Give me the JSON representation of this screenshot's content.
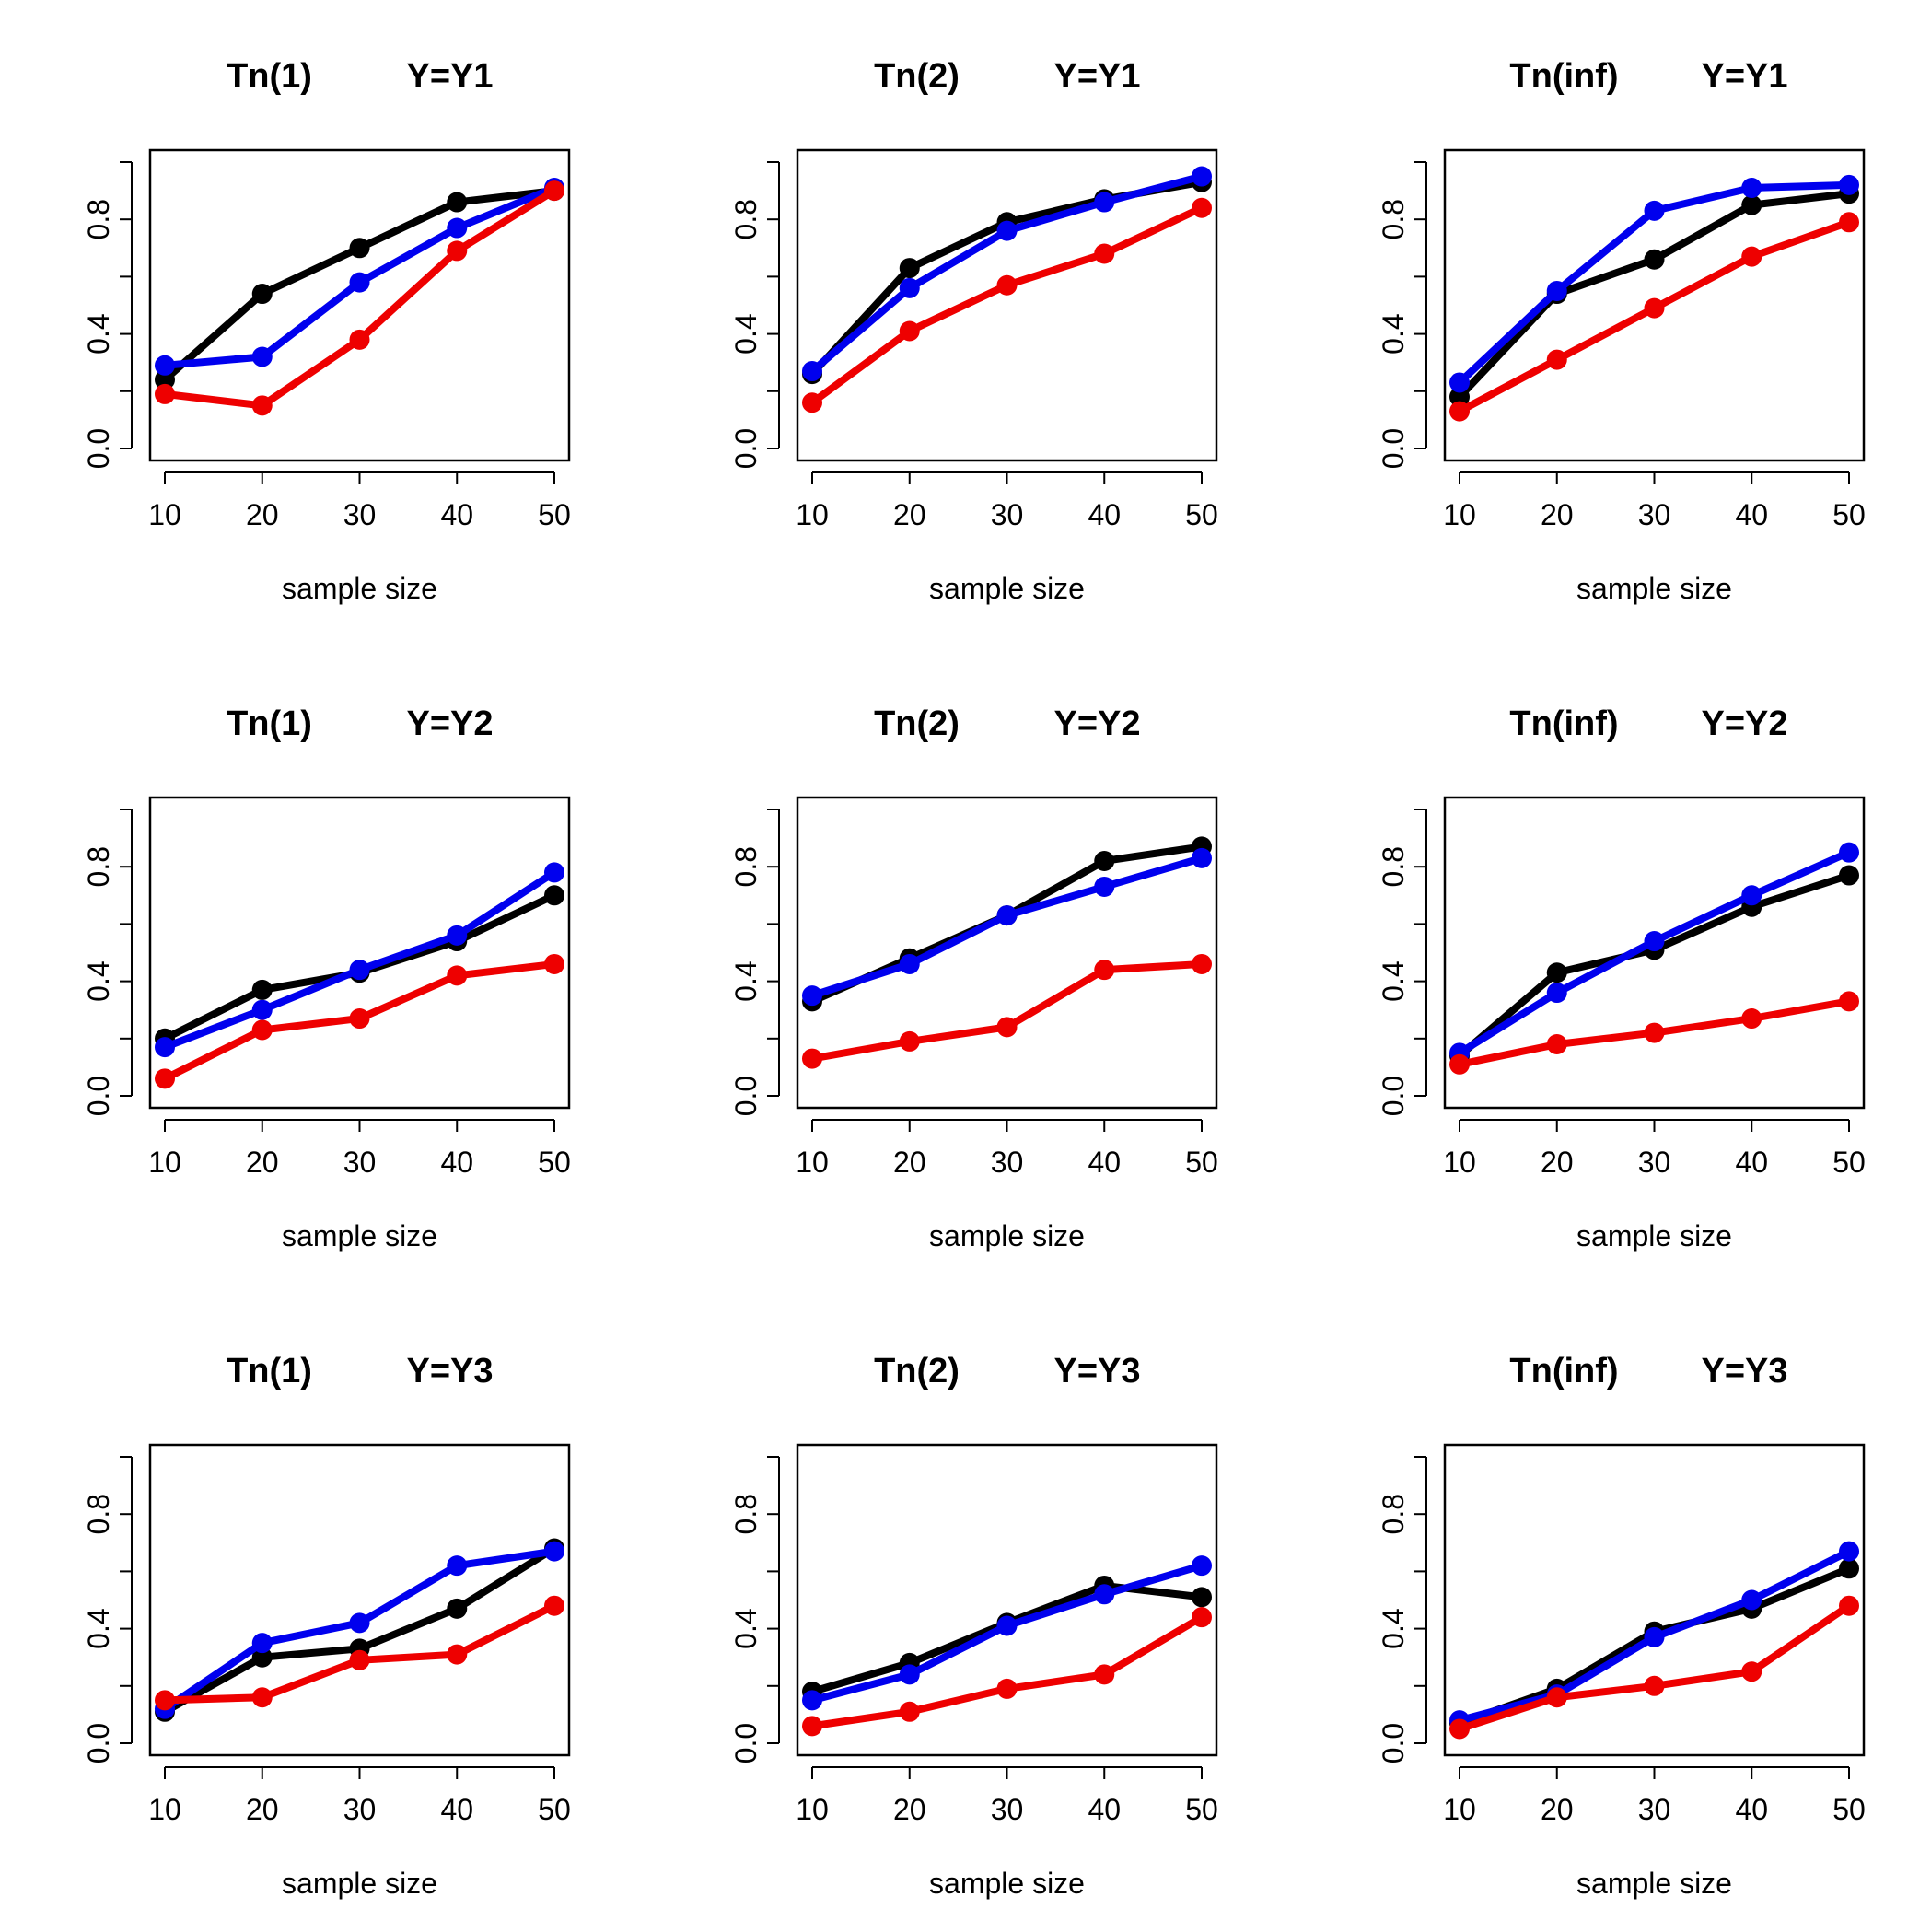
{
  "colors": {
    "series_black": "#000000",
    "series_blue": "#0000ee",
    "series_red": "#ee0000"
  },
  "chart_data": [
    {
      "type": "line",
      "title_stat": "Tn(1)",
      "title_y": "Y=Y1",
      "xlabel": "sample size",
      "ylabel": "",
      "x": [
        10,
        20,
        30,
        40,
        50
      ],
      "xticks": [
        "10",
        "20",
        "30",
        "40",
        "50"
      ],
      "yticks": [
        "0.0",
        "0.4",
        "0.8"
      ],
      "ylim": [
        0,
        1
      ],
      "series": [
        {
          "name": "black",
          "values": [
            0.24,
            0.54,
            0.7,
            0.86,
            0.9
          ]
        },
        {
          "name": "blue",
          "values": [
            0.29,
            0.32,
            0.58,
            0.77,
            0.91
          ]
        },
        {
          "name": "red",
          "values": [
            0.19,
            0.15,
            0.38,
            0.69,
            0.9
          ]
        }
      ]
    },
    {
      "type": "line",
      "title_stat": "Tn(2)",
      "title_y": "Y=Y1",
      "xlabel": "sample size",
      "ylabel": "",
      "x": [
        10,
        20,
        30,
        40,
        50
      ],
      "xticks": [
        "10",
        "20",
        "30",
        "40",
        "50"
      ],
      "yticks": [
        "0.0",
        "0.4",
        "0.8"
      ],
      "ylim": [
        0,
        1
      ],
      "series": [
        {
          "name": "black",
          "values": [
            0.26,
            0.63,
            0.79,
            0.87,
            0.93
          ]
        },
        {
          "name": "blue",
          "values": [
            0.27,
            0.56,
            0.76,
            0.86,
            0.95
          ]
        },
        {
          "name": "red",
          "values": [
            0.16,
            0.41,
            0.57,
            0.68,
            0.84
          ]
        }
      ]
    },
    {
      "type": "line",
      "title_stat": "Tn(inf)",
      "title_y": "Y=Y1",
      "xlabel": "sample size",
      "ylabel": "",
      "x": [
        10,
        20,
        30,
        40,
        50
      ],
      "xticks": [
        "10",
        "20",
        "30",
        "40",
        "50"
      ],
      "yticks": [
        "0.0",
        "0.4",
        "0.8"
      ],
      "ylim": [
        0,
        1
      ],
      "series": [
        {
          "name": "black",
          "values": [
            0.18,
            0.54,
            0.66,
            0.85,
            0.89
          ]
        },
        {
          "name": "blue",
          "values": [
            0.23,
            0.55,
            0.83,
            0.91,
            0.92
          ]
        },
        {
          "name": "red",
          "values": [
            0.13,
            0.31,
            0.49,
            0.67,
            0.79
          ]
        }
      ]
    },
    {
      "type": "line",
      "title_stat": "Tn(1)",
      "title_y": "Y=Y2",
      "xlabel": "sample size",
      "ylabel": "",
      "x": [
        10,
        20,
        30,
        40,
        50
      ],
      "xticks": [
        "10",
        "20",
        "30",
        "40",
        "50"
      ],
      "yticks": [
        "0.0",
        "0.4",
        "0.8"
      ],
      "ylim": [
        0,
        1
      ],
      "series": [
        {
          "name": "black",
          "values": [
            0.2,
            0.37,
            0.43,
            0.54,
            0.7
          ]
        },
        {
          "name": "blue",
          "values": [
            0.17,
            0.3,
            0.44,
            0.56,
            0.78
          ]
        },
        {
          "name": "red",
          "values": [
            0.06,
            0.23,
            0.27,
            0.42,
            0.46
          ]
        }
      ]
    },
    {
      "type": "line",
      "title_stat": "Tn(2)",
      "title_y": "Y=Y2",
      "xlabel": "sample size",
      "ylabel": "",
      "x": [
        10,
        20,
        30,
        40,
        50
      ],
      "xticks": [
        "10",
        "20",
        "30",
        "40",
        "50"
      ],
      "yticks": [
        "0.0",
        "0.4",
        "0.8"
      ],
      "ylim": [
        0,
        1
      ],
      "series": [
        {
          "name": "black",
          "values": [
            0.33,
            0.48,
            0.63,
            0.82,
            0.87
          ]
        },
        {
          "name": "blue",
          "values": [
            0.35,
            0.46,
            0.63,
            0.73,
            0.83
          ]
        },
        {
          "name": "red",
          "values": [
            0.13,
            0.19,
            0.24,
            0.44,
            0.46
          ]
        }
      ]
    },
    {
      "type": "line",
      "title_stat": "Tn(inf)",
      "title_y": "Y=Y2",
      "xlabel": "sample size",
      "ylabel": "",
      "x": [
        10,
        20,
        30,
        40,
        50
      ],
      "xticks": [
        "10",
        "20",
        "30",
        "40",
        "50"
      ],
      "yticks": [
        "0.0",
        "0.4",
        "0.8"
      ],
      "ylim": [
        0,
        1
      ],
      "series": [
        {
          "name": "black",
          "values": [
            0.14,
            0.43,
            0.51,
            0.66,
            0.77
          ]
        },
        {
          "name": "blue",
          "values": [
            0.15,
            0.36,
            0.54,
            0.7,
            0.85
          ]
        },
        {
          "name": "red",
          "values": [
            0.11,
            0.18,
            0.22,
            0.27,
            0.33
          ]
        }
      ]
    },
    {
      "type": "line",
      "title_stat": "Tn(1)",
      "title_y": "Y=Y3",
      "xlabel": "sample size",
      "ylabel": "",
      "x": [
        10,
        20,
        30,
        40,
        50
      ],
      "xticks": [
        "10",
        "20",
        "30",
        "40",
        "50"
      ],
      "yticks": [
        "0.0",
        "0.4",
        "0.8"
      ],
      "ylim": [
        0,
        1
      ],
      "series": [
        {
          "name": "black",
          "values": [
            0.11,
            0.3,
            0.33,
            0.47,
            0.68
          ]
        },
        {
          "name": "blue",
          "values": [
            0.12,
            0.35,
            0.42,
            0.62,
            0.67
          ]
        },
        {
          "name": "red",
          "values": [
            0.15,
            0.16,
            0.29,
            0.31,
            0.48
          ]
        }
      ]
    },
    {
      "type": "line",
      "title_stat": "Tn(2)",
      "title_y": "Y=Y3",
      "xlabel": "sample size",
      "ylabel": "",
      "x": [
        10,
        20,
        30,
        40,
        50
      ],
      "xticks": [
        "10",
        "20",
        "30",
        "40",
        "50"
      ],
      "yticks": [
        "0.0",
        "0.4",
        "0.8"
      ],
      "ylim": [
        0,
        1
      ],
      "series": [
        {
          "name": "black",
          "values": [
            0.18,
            0.28,
            0.42,
            0.55,
            0.51
          ]
        },
        {
          "name": "blue",
          "values": [
            0.15,
            0.24,
            0.41,
            0.52,
            0.62
          ]
        },
        {
          "name": "red",
          "values": [
            0.06,
            0.11,
            0.19,
            0.24,
            0.44
          ]
        }
      ]
    },
    {
      "type": "line",
      "title_stat": "Tn(inf)",
      "title_y": "Y=Y3",
      "xlabel": "sample size",
      "ylabel": "",
      "x": [
        10,
        20,
        30,
        40,
        50
      ],
      "xticks": [
        "10",
        "20",
        "30",
        "40",
        "50"
      ],
      "yticks": [
        "0.0",
        "0.4",
        "0.8"
      ],
      "ylim": [
        0,
        1
      ],
      "series": [
        {
          "name": "black",
          "values": [
            0.07,
            0.19,
            0.39,
            0.47,
            0.61
          ]
        },
        {
          "name": "blue",
          "values": [
            0.08,
            0.17,
            0.37,
            0.5,
            0.67
          ]
        },
        {
          "name": "red",
          "values": [
            0.05,
            0.16,
            0.2,
            0.25,
            0.48
          ]
        }
      ]
    }
  ]
}
